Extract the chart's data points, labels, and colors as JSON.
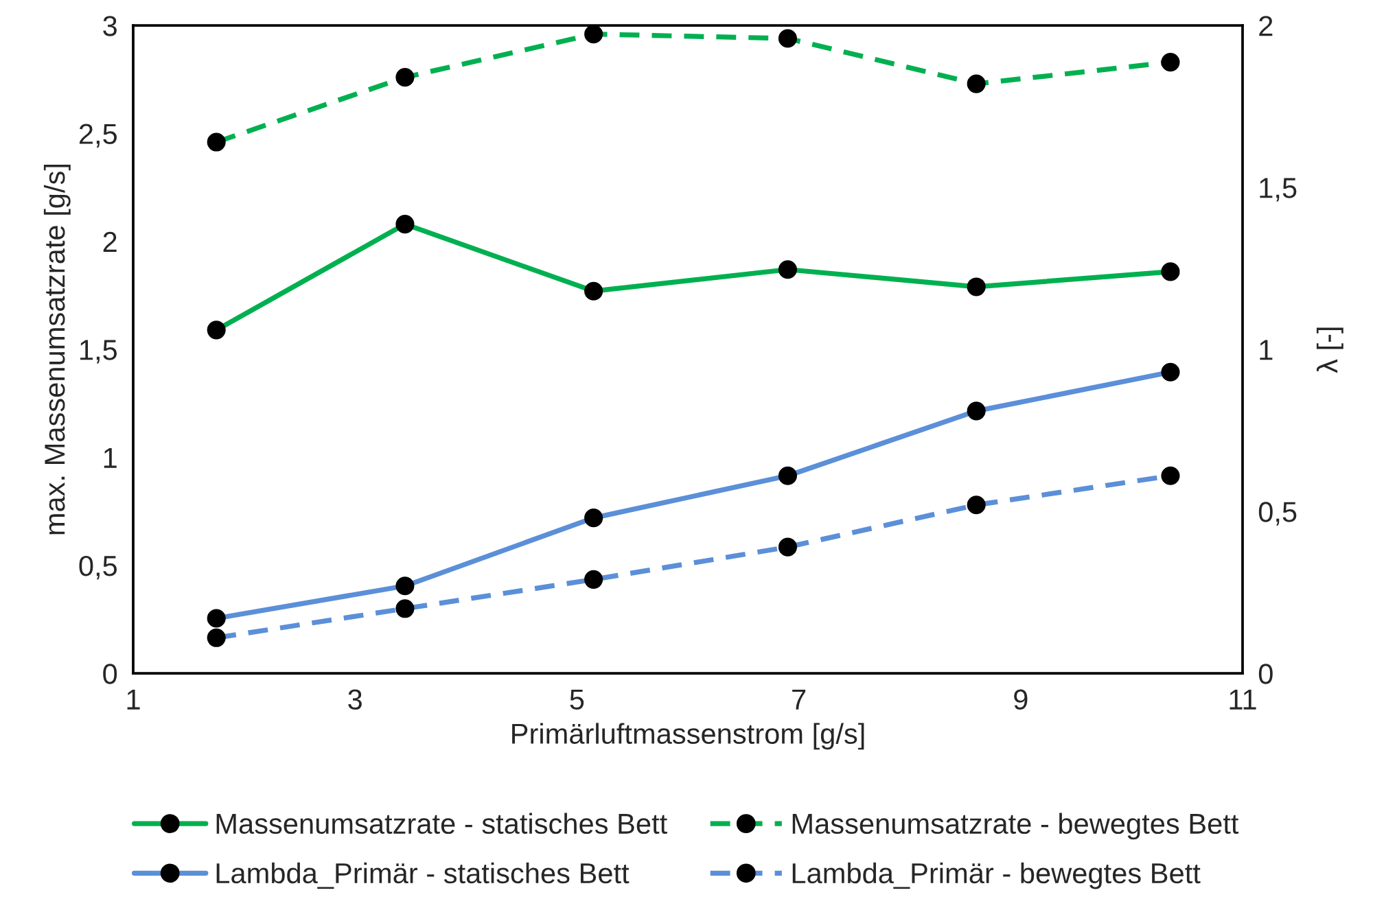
{
  "chart_data": {
    "type": "line",
    "xlabel": "Primärluftmassenstrom [g/s]",
    "ylabel": "max. Massenumsatzrate [g/s]",
    "y2label": "λ [-]",
    "x": [
      1.75,
      3.45,
      5.15,
      6.9,
      8.6,
      10.35
    ],
    "series": [
      {
        "name": "Massenumsatzrate - statisches Bett",
        "color": "#00b050",
        "line_style": "solid",
        "values": [
          1.59,
          2.08,
          1.77,
          1.87,
          1.79,
          1.86
        ]
      },
      {
        "name": "Massenumsatzrate - bewegtes Bett",
        "color": "#00b050",
        "line_style": "dashed",
        "values": [
          2.46,
          2.76,
          2.96,
          2.94,
          2.73,
          2.83
        ]
      },
      {
        "name": "Lambda_Primär - statisches Bett",
        "color": "#5b8fd8",
        "line_style": "solid",
        "axis": "y2",
        "values": [
          0.17,
          0.27,
          0.48,
          0.61,
          0.81,
          0.93
        ]
      },
      {
        "name": "Lambda_Primär - bewegtes Bett",
        "color": "#5b8fd8",
        "line_style": "dashed",
        "axis": "y2",
        "values": [
          0.11,
          0.2,
          0.29,
          0.39,
          0.52,
          0.61
        ]
      }
    ],
    "marker": "circle",
    "xlim": [
      1,
      11
    ],
    "xticks": [
      1,
      3,
      5,
      7,
      9,
      11
    ],
    "ylim": [
      0,
      3
    ],
    "yticks": [
      0,
      {
        "value": 0.5,
        "label": "0,5"
      },
      1,
      {
        "value": 1.5,
        "label": "1,5"
      },
      2,
      {
        "value": 2.5,
        "label": "2,5"
      },
      3
    ],
    "y2lim": [
      0,
      2
    ],
    "y2ticks": [
      0,
      {
        "value": 0.5,
        "label": "0,5"
      },
      1,
      {
        "value": 1.5,
        "label": "1,5"
      },
      2
    ],
    "grid": false,
    "legend": "bottom"
  }
}
